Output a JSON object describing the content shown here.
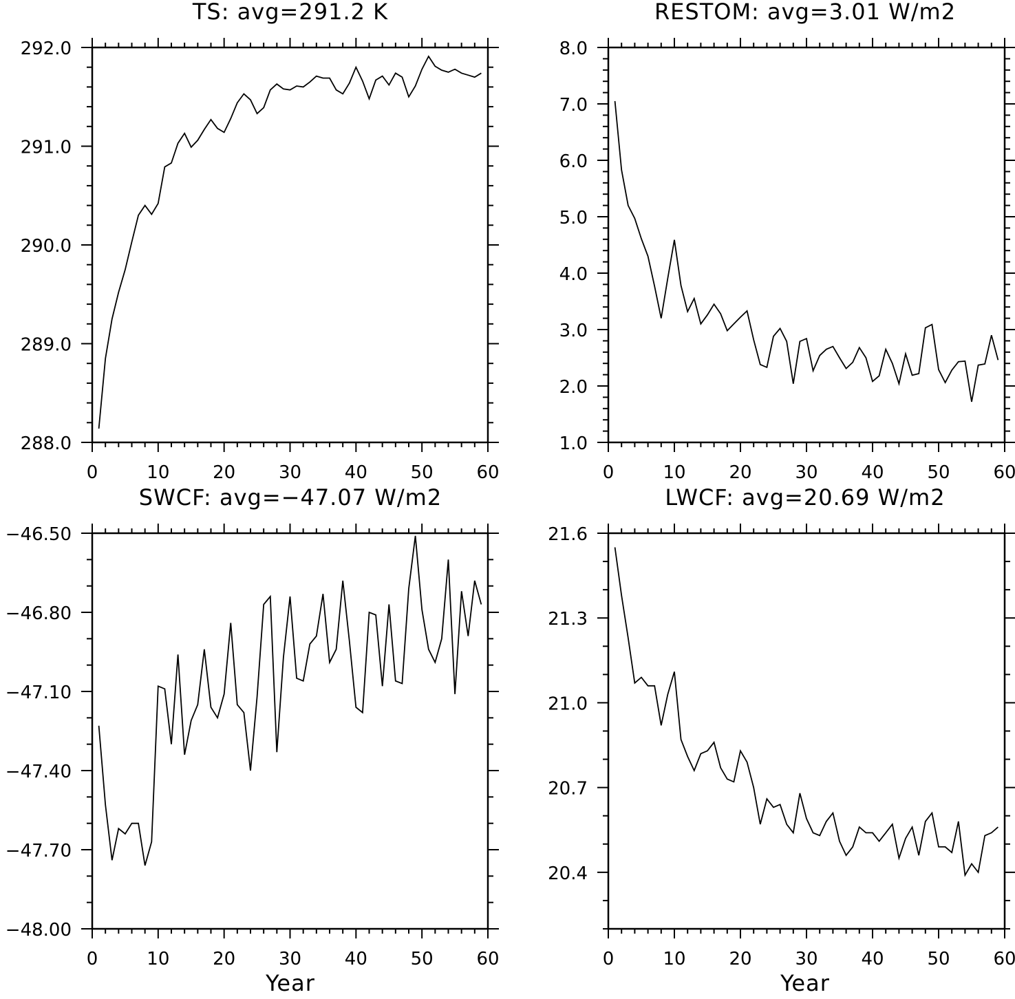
{
  "chart_data": [
    {
      "type": "line",
      "title": "TS: avg=291.2 K",
      "xlabel": "",
      "xlim": [
        0,
        60
      ],
      "ylim": [
        288.0,
        292.0
      ],
      "xticks": [
        "0",
        "10",
        "20",
        "30",
        "40",
        "50",
        "60"
      ],
      "yticks": [
        "288.0",
        "289.0",
        "290.0",
        "291.0",
        "292.0"
      ],
      "x": [
        1,
        2,
        3,
        4,
        5,
        6,
        7,
        8,
        9,
        10,
        11,
        12,
        13,
        14,
        15,
        16,
        17,
        18,
        19,
        20,
        21,
        22,
        23,
        24,
        25,
        26,
        27,
        28,
        29,
        30,
        31,
        32,
        33,
        34,
        35,
        36,
        37,
        38,
        39,
        40,
        41,
        42,
        43,
        44,
        45,
        46,
        47,
        48,
        49,
        50,
        51,
        52,
        53,
        54,
        55,
        56,
        57,
        58,
        59
      ],
      "values": [
        288.14,
        288.85,
        289.25,
        289.52,
        289.75,
        290.03,
        290.3,
        290.4,
        290.31,
        290.42,
        290.79,
        290.83,
        291.03,
        291.13,
        290.99,
        291.06,
        291.17,
        291.27,
        291.18,
        291.14,
        291.28,
        291.44,
        291.53,
        291.47,
        291.33,
        291.39,
        291.57,
        291.63,
        291.58,
        291.57,
        291.61,
        291.6,
        291.65,
        291.71,
        291.69,
        291.69,
        291.57,
        291.53,
        291.64,
        291.8,
        291.66,
        291.48,
        291.67,
        291.71,
        291.62,
        291.74,
        291.7,
        291.5,
        291.61,
        291.78,
        291.91,
        291.81,
        291.77,
        291.75,
        291.78,
        291.74,
        291.72,
        291.7,
        291.74
      ]
    },
    {
      "type": "line",
      "title": "RESTOM: avg=3.01 W/m2",
      "xlabel": "",
      "xlim": [
        0,
        60
      ],
      "ylim": [
        1.0,
        8.0
      ],
      "xticks": [
        "0",
        "10",
        "20",
        "30",
        "40",
        "50",
        "60"
      ],
      "yticks": [
        "1.0",
        "2.0",
        "3.0",
        "4.0",
        "5.0",
        "6.0",
        "7.0",
        "8.0"
      ],
      "x": [
        1,
        2,
        3,
        4,
        5,
        6,
        7,
        8,
        9,
        10,
        11,
        12,
        13,
        14,
        15,
        16,
        17,
        18,
        19,
        20,
        21,
        22,
        23,
        24,
        25,
        26,
        27,
        28,
        29,
        30,
        31,
        32,
        33,
        34,
        35,
        36,
        37,
        38,
        39,
        40,
        41,
        42,
        43,
        44,
        45,
        46,
        47,
        48,
        49,
        50,
        51,
        52,
        53,
        54,
        55,
        56,
        57,
        58,
        59
      ],
      "values": [
        7.05,
        5.83,
        5.2,
        4.97,
        4.61,
        4.3,
        3.77,
        3.2,
        3.91,
        4.59,
        3.78,
        3.32,
        3.55,
        3.1,
        3.26,
        3.45,
        3.28,
        2.98,
        3.1,
        3.22,
        3.33,
        2.82,
        2.38,
        2.33,
        2.88,
        3.02,
        2.79,
        2.04,
        2.79,
        2.84,
        2.27,
        2.54,
        2.65,
        2.7,
        2.5,
        2.31,
        2.42,
        2.68,
        2.5,
        2.08,
        2.18,
        2.65,
        2.4,
        2.04,
        2.57,
        2.19,
        2.22,
        3.03,
        3.09,
        2.29,
        2.06,
        2.28,
        2.43,
        2.44,
        1.72,
        2.37,
        2.39,
        2.9,
        2.46
      ]
    },
    {
      "type": "line",
      "title": "SWCF: avg=−47.07 W/m2",
      "xlabel": "Year",
      "xlim": [
        0,
        60
      ],
      "ylim": [
        -48.0,
        -46.5
      ],
      "xticks": [
        "0",
        "10",
        "20",
        "30",
        "40",
        "50",
        "60"
      ],
      "yticks": [
        "−48.00",
        "−47.70",
        "−47.40",
        "−47.10",
        "−46.80",
        "−46.50"
      ],
      "x": [
        1,
        2,
        3,
        4,
        5,
        6,
        7,
        8,
        9,
        10,
        11,
        12,
        13,
        14,
        15,
        16,
        17,
        18,
        19,
        20,
        21,
        22,
        23,
        24,
        25,
        26,
        27,
        28,
        29,
        30,
        31,
        32,
        33,
        34,
        35,
        36,
        37,
        38,
        39,
        40,
        41,
        42,
        43,
        44,
        45,
        46,
        47,
        48,
        49,
        50,
        51,
        52,
        53,
        54,
        55,
        56,
        57,
        58,
        59
      ],
      "values": [
        -47.23,
        -47.53,
        -47.74,
        -47.62,
        -47.64,
        -47.6,
        -47.6,
        -47.76,
        -47.67,
        -47.08,
        -47.09,
        -47.3,
        -46.96,
        -47.34,
        -47.21,
        -47.15,
        -46.94,
        -47.16,
        -47.2,
        -47.11,
        -46.84,
        -47.15,
        -47.18,
        -47.4,
        -47.12,
        -46.77,
        -46.74,
        -47.33,
        -46.97,
        -46.74,
        -47.05,
        -47.06,
        -46.92,
        -46.89,
        -46.73,
        -46.99,
        -46.94,
        -46.68,
        -46.91,
        -47.16,
        -47.18,
        -46.8,
        -46.81,
        -47.08,
        -46.77,
        -47.06,
        -47.07,
        -46.71,
        -46.51,
        -46.79,
        -46.94,
        -46.99,
        -46.9,
        -46.6,
        -47.11,
        -46.72,
        -46.89,
        -46.68,
        -46.77
      ]
    },
    {
      "type": "line",
      "title": "LWCF: avg=20.69 W/m2",
      "xlabel": "Year",
      "xlim": [
        0,
        60
      ],
      "ylim": [
        20.2,
        21.6
      ],
      "xticks": [
        "0",
        "10",
        "20",
        "30",
        "40",
        "50",
        "60"
      ],
      "yticks": [
        "20.4",
        "20.7",
        "21.0",
        "21.3",
        "21.6"
      ],
      "x": [
        1,
        2,
        3,
        4,
        5,
        6,
        7,
        8,
        9,
        10,
        11,
        12,
        13,
        14,
        15,
        16,
        17,
        18,
        19,
        20,
        21,
        22,
        23,
        24,
        25,
        26,
        27,
        28,
        29,
        30,
        31,
        32,
        33,
        34,
        35,
        36,
        37,
        38,
        39,
        40,
        41,
        42,
        43,
        44,
        45,
        46,
        47,
        48,
        49,
        50,
        51,
        52,
        53,
        54,
        55,
        56,
        57,
        58,
        59
      ],
      "values": [
        21.55,
        21.38,
        21.23,
        21.07,
        21.09,
        21.06,
        21.06,
        20.92,
        21.03,
        21.11,
        20.87,
        20.81,
        20.76,
        20.82,
        20.83,
        20.86,
        20.77,
        20.73,
        20.72,
        20.83,
        20.79,
        20.7,
        20.57,
        20.66,
        20.63,
        20.64,
        20.57,
        20.54,
        20.68,
        20.59,
        20.54,
        20.53,
        20.58,
        20.61,
        20.51,
        20.46,
        20.49,
        20.56,
        20.54,
        20.54,
        20.51,
        20.54,
        20.57,
        20.45,
        20.52,
        20.56,
        20.46,
        20.58,
        20.61,
        20.49,
        20.49,
        20.47,
        20.58,
        20.39,
        20.43,
        20.4,
        20.53,
        20.54,
        20.56
      ]
    }
  ]
}
